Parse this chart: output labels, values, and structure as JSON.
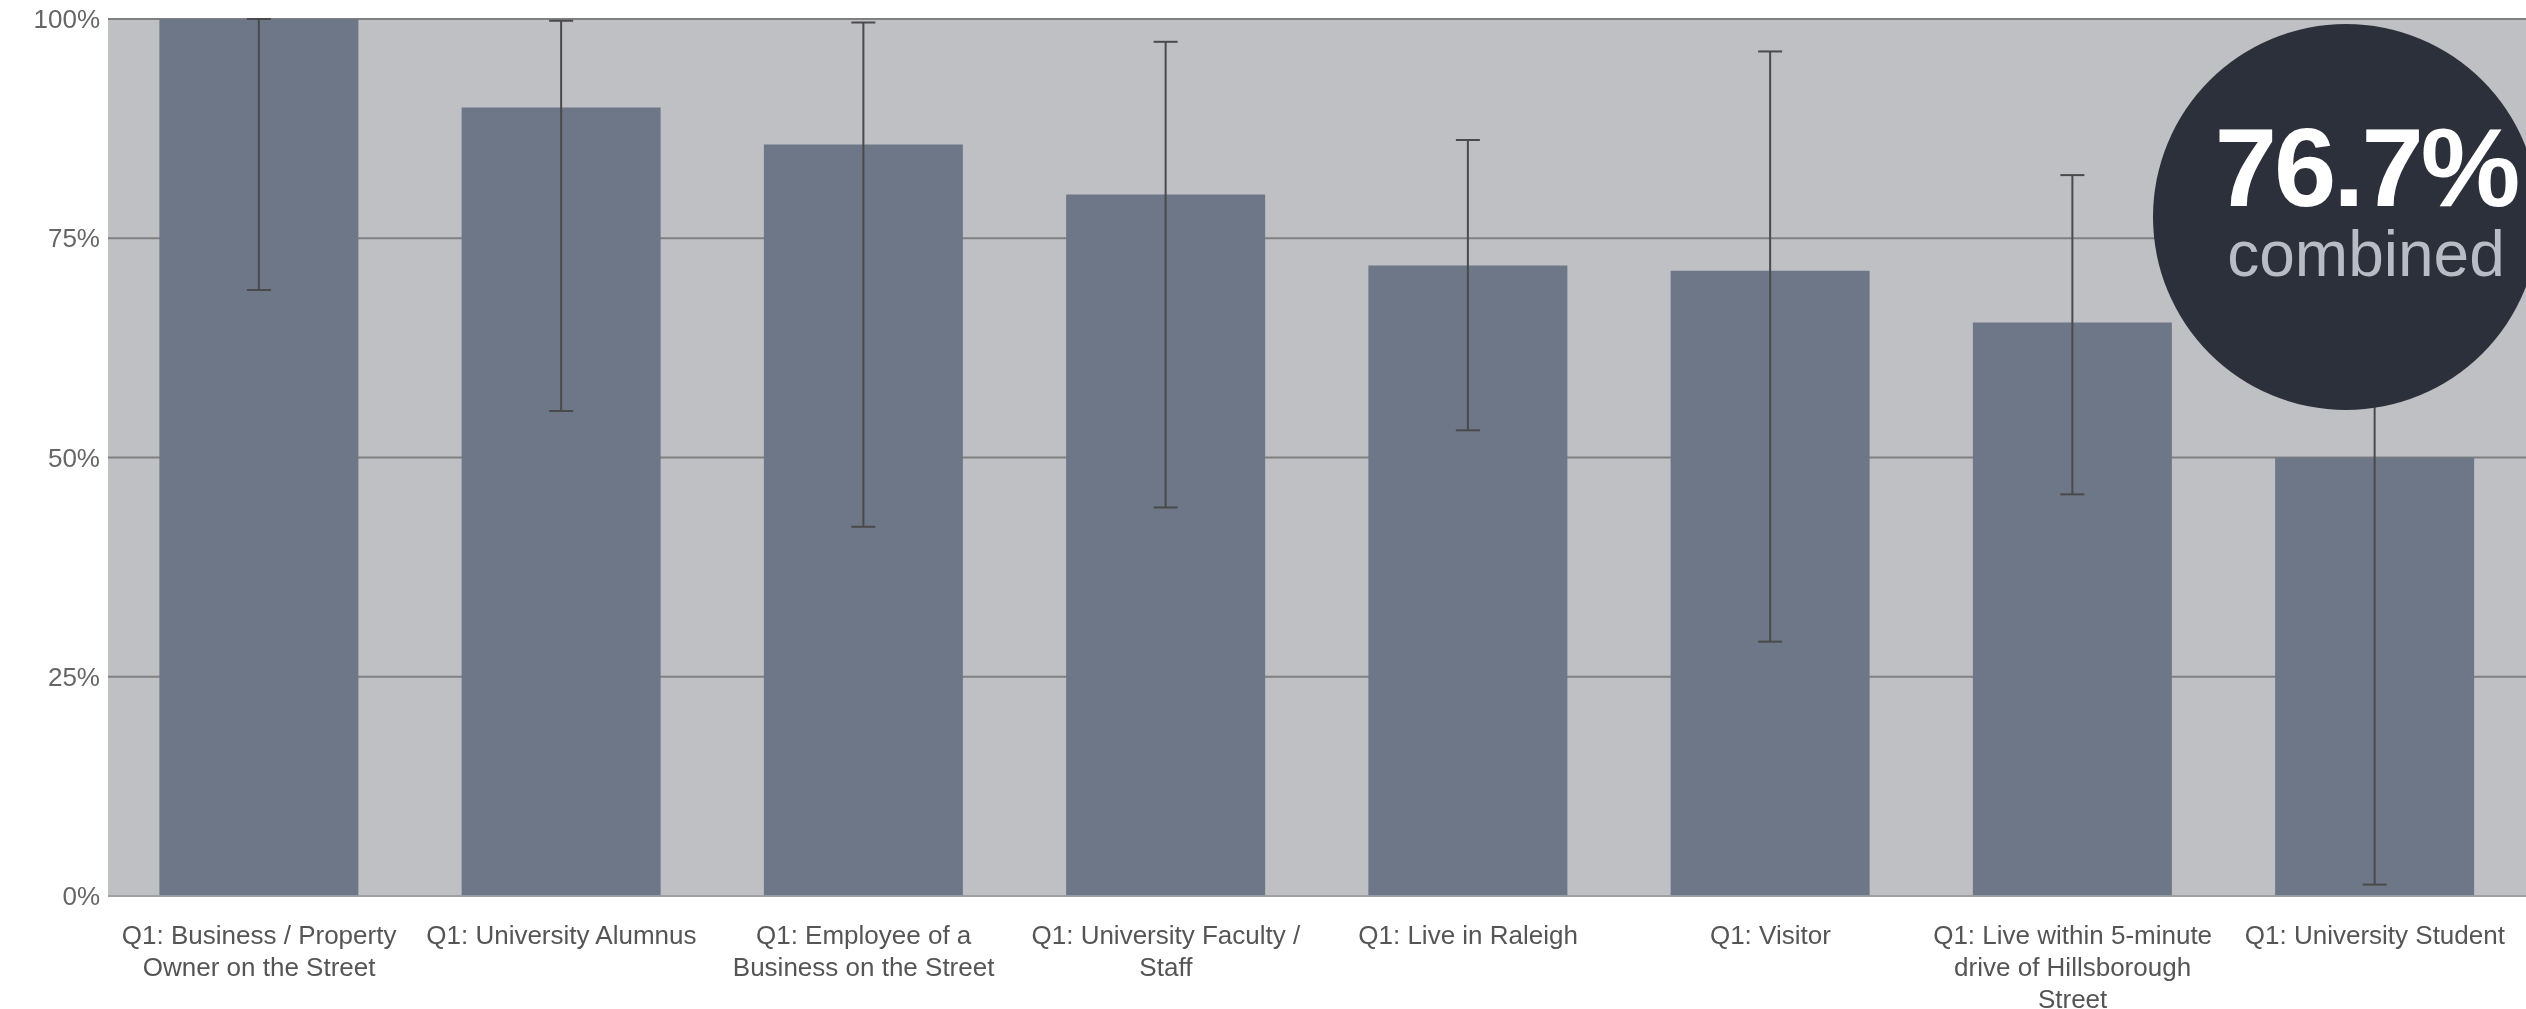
{
  "chart_data": {
    "type": "bar",
    "categories": [
      "Q1: Business / Property Owner on the Street",
      "Q1: University Alumnus",
      "Q1: Employee of a Business on the Street",
      "Q1: University Faculty / Staff",
      "Q1: Live in Raleigh",
      "Q1: Visitor",
      "Q1: Live within 5-minute drive of Hillsborough Street",
      "Q1: University Student"
    ],
    "values": [
      100,
      89.9,
      85.7,
      80.0,
      71.9,
      71.3,
      65.4,
      50.0
    ],
    "errors": [
      [
        69.1,
        100
      ],
      [
        55.3,
        99.8
      ],
      [
        42.1,
        99.6
      ],
      [
        44.3,
        97.4
      ],
      [
        53.1,
        86.2
      ],
      [
        29.0,
        96.3
      ],
      [
        45.8,
        82.2
      ],
      [
        1.3,
        98.8
      ]
    ],
    "color": "#6d7787",
    "ylim": [
      0,
      100
    ],
    "yticks": [
      {
        "value": 0,
        "label": "0%"
      },
      {
        "value": 25,
        "label": "25%"
      },
      {
        "value": 50,
        "label": "50%"
      },
      {
        "value": 75,
        "label": "75%"
      },
      {
        "value": 100,
        "label": "100%"
      }
    ],
    "grid": "y",
    "annotations": [
      "76.7%",
      "combined"
    ]
  }
}
